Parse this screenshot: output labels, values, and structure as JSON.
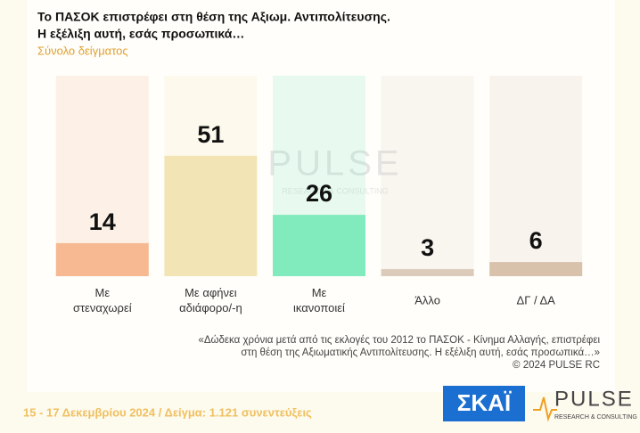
{
  "chart_data": {
    "type": "bar",
    "title": [
      "Το ΠΑΣΟΚ επιστρέφει στη θέση της Αξιωμ. Αντιπολίτευσης.",
      "Η εξέλιξη αυτή, εσάς προσωπικά…"
    ],
    "subtitle": "Σύνολο δείγματος",
    "categories": [
      [
        "Με",
        "στεναχωρεί"
      ],
      [
        "Με αφήνει",
        "αδιάφορο/-η"
      ],
      [
        "Με",
        "ικανοποιεί"
      ],
      [
        "Άλλο"
      ],
      [
        "ΔΓ / ΔΑ"
      ]
    ],
    "values": [
      14,
      51,
      26,
      3,
      6
    ],
    "colors": [
      "#f6b992",
      "#f2e4b4",
      "#82ebbd",
      "#dccbbb",
      "#d8c2ab"
    ],
    "ylim": [
      0,
      60
    ],
    "footnote": [
      "«Δώδεκα χρόνια μετά από τις εκλογές του 2012 το ΠΑΣΟΚ - Κίνημα Αλλαγής, επιστρέφει",
      "στη θέση της Αξιωματικής Αντιπολίτευσης. Η εξέλιξη αυτή, εσάς προσωπικά…»",
      "©  2024  PULSE RC"
    ],
    "fieldwork": "15 - 17 Δεκεμβρίου 2024  /  Δείγμα:  1.121 συνεντεύξεις",
    "logos": {
      "skai": "ΣΚΑΪ",
      "pulse": "PULSE",
      "pulse_sub": "RESEARCH & CONSULTING"
    }
  }
}
